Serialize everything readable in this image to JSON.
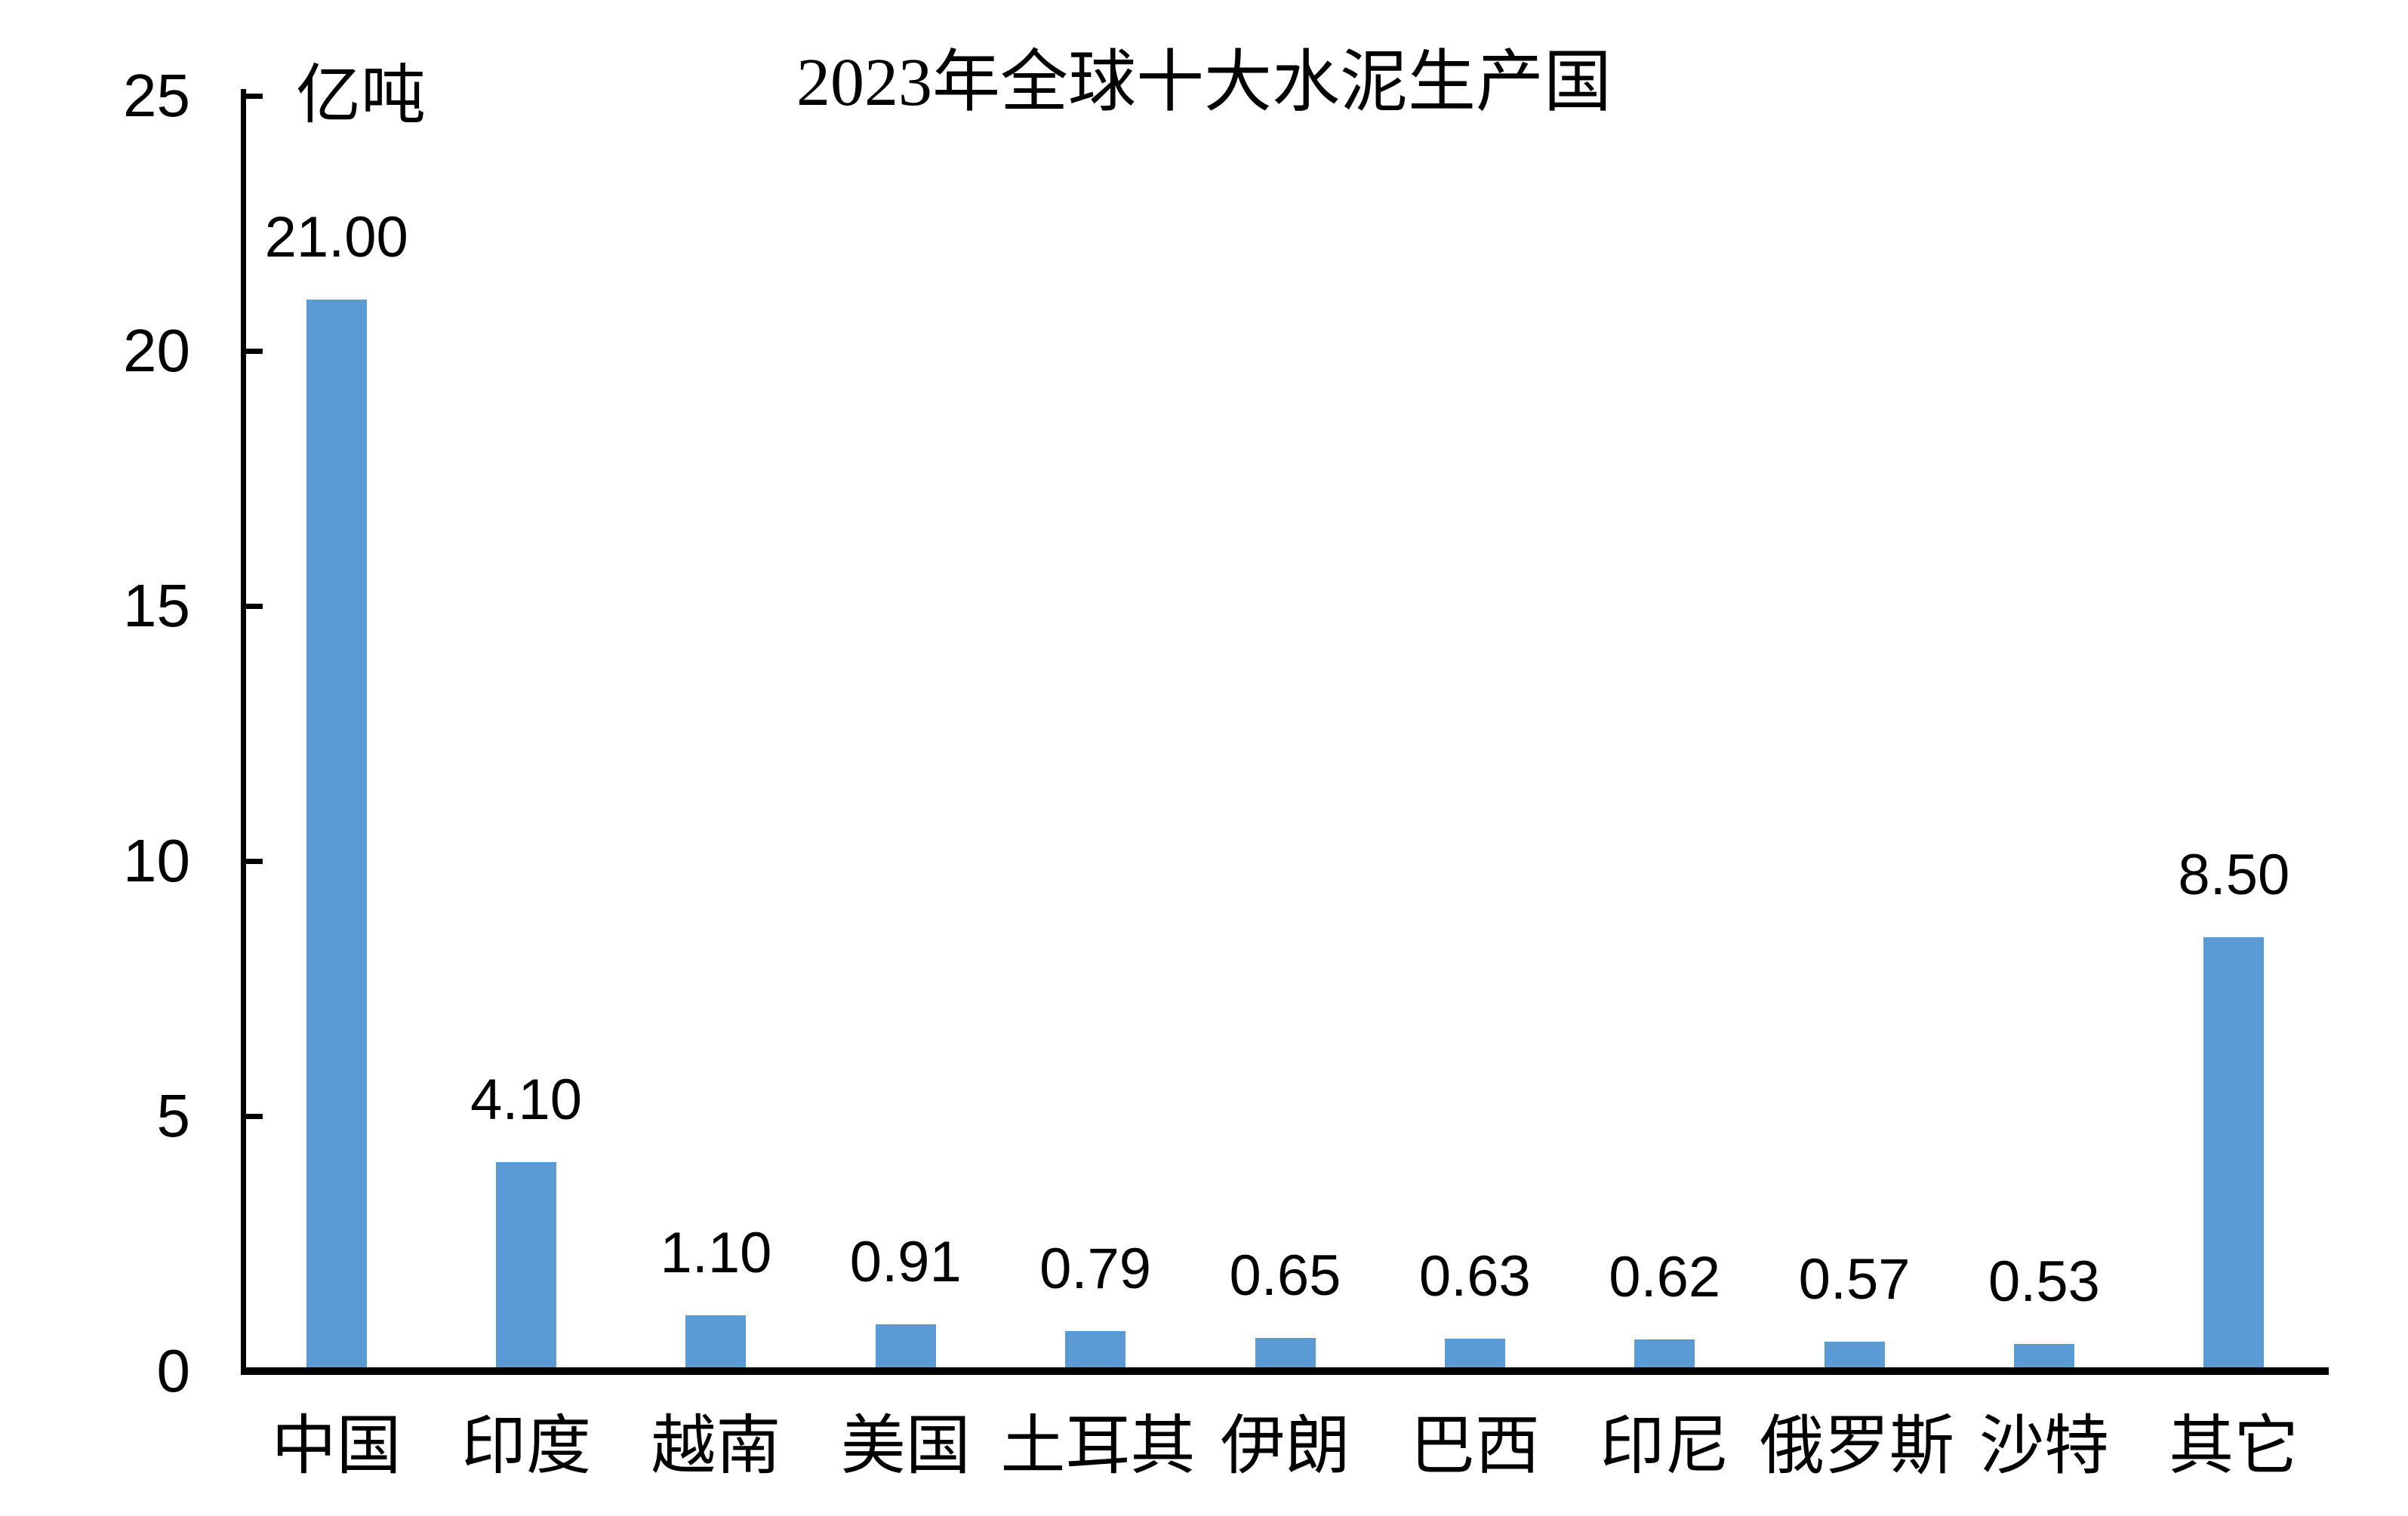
{
  "chart_data": {
    "type": "bar",
    "title": "2023年全球十大水泥生产国",
    "unit_label": "亿吨",
    "categories": [
      "中国",
      "印度",
      "越南",
      "美国",
      "土耳其",
      "伊朗",
      "巴西",
      "印尼",
      "俄罗斯",
      "沙特",
      "其它"
    ],
    "values": [
      21.0,
      4.1,
      1.1,
      0.91,
      0.79,
      0.65,
      0.63,
      0.62,
      0.57,
      0.53,
      8.5
    ],
    "data_labels": [
      "21.00",
      "4.10",
      "1.10",
      "0.91",
      "0.79",
      "0.65",
      "0.63",
      "0.62",
      "0.57",
      "0.53",
      "8.50"
    ],
    "xlabel": "",
    "ylabel": "",
    "ylim": [
      0,
      25
    ],
    "ytick_interval": 5,
    "yticks": [
      0,
      5,
      10,
      15,
      20,
      25
    ],
    "ytick_labels": [
      "0",
      "5",
      "10",
      "15",
      "20",
      "25"
    ],
    "grid": false,
    "legend": null,
    "bar_color": "#5B9BD5",
    "axis_color": "#000000",
    "text_color": "#000000",
    "background_color": "#FFFFFF"
  }
}
